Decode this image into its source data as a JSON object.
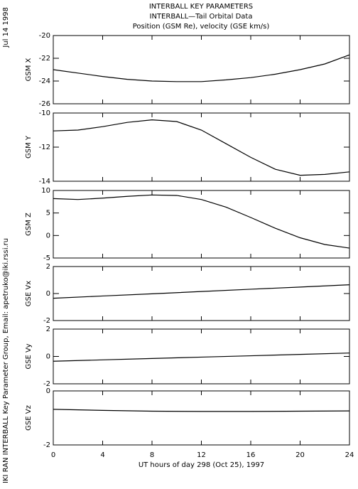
{
  "header": {
    "title": [
      "INTERBALL KEY PARAMETERS",
      "INTERBALL—Tail Orbital Data",
      "Position (GSM Re), velocity (GSE km/s)"
    ],
    "date": "Jul 14 1998",
    "credit": "IKI RAN INTERBALL Key Parameter Group, Email: apetruko@iki.rssi.ru"
  },
  "chart_data": [
    {
      "type": "line",
      "y_label": "GSM X",
      "x": [
        0,
        2,
        4,
        6,
        8,
        10,
        12,
        14,
        16,
        18,
        20,
        22,
        24
      ],
      "values": [
        -23.0,
        -23.3,
        -23.6,
        -23.85,
        -24.0,
        -24.05,
        -24.05,
        -23.9,
        -23.7,
        -23.4,
        -23.0,
        -22.5,
        -21.7
      ],
      "color": "#000000",
      "xlim": [
        0,
        24
      ],
      "xticks": [
        0,
        4,
        8,
        12,
        16,
        20,
        24
      ],
      "ylim": [
        -26,
        -20
      ],
      "yticks": [
        -20,
        -22,
        -24,
        -26
      ]
    },
    {
      "type": "line",
      "y_label": "GSM Y",
      "x": [
        0,
        2,
        4,
        6,
        8,
        10,
        12,
        14,
        16,
        18,
        20,
        22,
        24
      ],
      "values": [
        -11.05,
        -11.0,
        -10.8,
        -10.55,
        -10.4,
        -10.5,
        -11.0,
        -11.8,
        -12.6,
        -13.3,
        -13.65,
        -13.6,
        -13.45
      ],
      "color": "#000000",
      "xlim": [
        0,
        24
      ],
      "xticks": [
        0,
        4,
        8,
        12,
        16,
        20,
        24
      ],
      "ylim": [
        -14,
        -10
      ],
      "yticks": [
        -10,
        -12,
        -14
      ]
    },
    {
      "type": "line",
      "y_label": "GSM Z",
      "x": [
        0,
        2,
        4,
        6,
        8,
        10,
        12,
        14,
        16,
        18,
        20,
        22,
        24
      ],
      "values": [
        8.2,
        8.0,
        8.3,
        8.7,
        9.0,
        8.9,
        8.0,
        6.3,
        4.0,
        1.6,
        -0.5,
        -2.0,
        -2.8
      ],
      "color": "#000000",
      "xlim": [
        0,
        24
      ],
      "xticks": [
        0,
        4,
        8,
        12,
        16,
        20,
        24
      ],
      "ylim": [
        -5,
        10
      ],
      "yticks": [
        10,
        5,
        0,
        -5
      ]
    },
    {
      "type": "line",
      "y_label": "GSE Vx",
      "x": [
        0,
        4,
        8,
        12,
        16,
        20,
        24
      ],
      "values": [
        -0.35,
        -0.18,
        -0.02,
        0.15,
        0.32,
        0.48,
        0.65
      ],
      "color": "#000000",
      "xlim": [
        0,
        24
      ],
      "xticks": [
        0,
        4,
        8,
        12,
        16,
        20,
        24
      ],
      "ylim": [
        -2,
        2
      ],
      "yticks": [
        2,
        0,
        -2
      ]
    },
    {
      "type": "line",
      "y_label": "GSE Vy",
      "x": [
        0,
        4,
        8,
        12,
        16,
        20,
        24
      ],
      "values": [
        -0.35,
        -0.25,
        -0.15,
        -0.05,
        0.05,
        0.15,
        0.25
      ],
      "color": "#000000",
      "xlim": [
        0,
        24
      ],
      "xticks": [
        0,
        4,
        8,
        12,
        16,
        20,
        24
      ],
      "ylim": [
        -2,
        2
      ],
      "yticks": [
        2,
        0,
        -2
      ]
    },
    {
      "type": "line",
      "y_label": "GSE Vz",
      "x": [
        0,
        4,
        8,
        12,
        16,
        20,
        24
      ],
      "values": [
        -0.68,
        -0.72,
        -0.75,
        -0.76,
        -0.76,
        -0.75,
        -0.74
      ],
      "color": "#000000",
      "xlim": [
        0,
        24
      ],
      "xticks": [
        0,
        4,
        8,
        12,
        16,
        20,
        24
      ],
      "ylim": [
        -2,
        0
      ],
      "yticks": [
        0,
        -2
      ],
      "x_label": "UT hours of day 298 (Oct 25), 1997"
    }
  ]
}
